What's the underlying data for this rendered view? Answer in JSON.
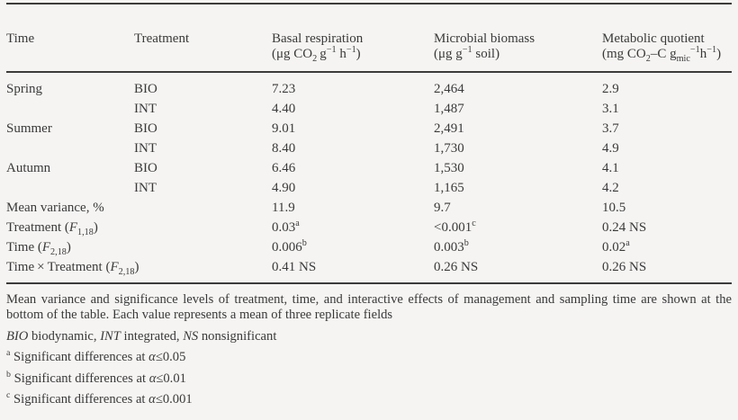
{
  "table": {
    "columns": [
      {
        "label": "Time"
      },
      {
        "label": "Treatment"
      },
      {
        "label": "Basal respiration",
        "unit": [
          {
            "t": "(μg CO"
          },
          {
            "t": "2",
            "s": "sub"
          },
          {
            "t": " g"
          },
          {
            "t": "−1",
            "s": "sup"
          },
          {
            "t": " h"
          },
          {
            "t": "−1",
            "s": "sup"
          },
          {
            "t": ")"
          }
        ]
      },
      {
        "label": "Microbial biomass",
        "unit": [
          {
            "t": "(μg g"
          },
          {
            "t": "−1",
            "s": "sup"
          },
          {
            "t": " soil)"
          }
        ]
      },
      {
        "label": "Metabolic quotient",
        "unit": [
          {
            "t": "(mg CO"
          },
          {
            "t": "2",
            "s": "sub"
          },
          {
            "t": "–C g"
          },
          {
            "t": "mic",
            "s": "sub"
          },
          {
            "t": "−1",
            "s": "sup"
          },
          {
            "t": "h"
          },
          {
            "t": "−1",
            "s": "sup"
          },
          {
            "t": ")"
          }
        ]
      }
    ],
    "rows": [
      {
        "label": [
          {
            "t": "Spring"
          }
        ],
        "treatment": "BIO",
        "basal": [
          {
            "t": "7.23"
          }
        ],
        "biomass": [
          {
            "t": "2,464"
          }
        ],
        "quotient": [
          {
            "t": "2.9"
          }
        ]
      },
      {
        "label": [
          {
            "t": ""
          }
        ],
        "treatment": "INT",
        "basal": [
          {
            "t": "4.40"
          }
        ],
        "biomass": [
          {
            "t": "1,487"
          }
        ],
        "quotient": [
          {
            "t": "3.1"
          }
        ]
      },
      {
        "label": [
          {
            "t": "Summer"
          }
        ],
        "treatment": "BIO",
        "basal": [
          {
            "t": "9.01"
          }
        ],
        "biomass": [
          {
            "t": "2,491"
          }
        ],
        "quotient": [
          {
            "t": "3.7"
          }
        ]
      },
      {
        "label": [
          {
            "t": ""
          }
        ],
        "treatment": "INT",
        "basal": [
          {
            "t": "8.40"
          }
        ],
        "biomass": [
          {
            "t": "1,730"
          }
        ],
        "quotient": [
          {
            "t": "4.9"
          }
        ]
      },
      {
        "label": [
          {
            "t": "Autumn"
          }
        ],
        "treatment": "BIO",
        "basal": [
          {
            "t": "6.46"
          }
        ],
        "biomass": [
          {
            "t": "1,530"
          }
        ],
        "quotient": [
          {
            "t": "4.1"
          }
        ]
      },
      {
        "label": [
          {
            "t": ""
          }
        ],
        "treatment": "INT",
        "basal": [
          {
            "t": "4.90"
          }
        ],
        "biomass": [
          {
            "t": "1,165"
          }
        ],
        "quotient": [
          {
            "t": "4.2"
          }
        ]
      },
      {
        "label": [
          {
            "t": "Mean variance, %"
          }
        ],
        "treatment": "",
        "basal": [
          {
            "t": "11.9"
          }
        ],
        "biomass": [
          {
            "t": "9.7"
          }
        ],
        "quotient": [
          {
            "t": "10.5"
          }
        ]
      },
      {
        "label": [
          {
            "t": "Treatment ("
          },
          {
            "t": "F",
            "s": "i"
          },
          {
            "t": "1,18",
            "s": "sub"
          },
          {
            "t": ")"
          }
        ],
        "treatment": "",
        "basal": [
          {
            "t": "0.03"
          },
          {
            "t": "a",
            "s": "sup"
          }
        ],
        "biomass": [
          {
            "t": "<0.001"
          },
          {
            "t": "c",
            "s": "sup"
          }
        ],
        "quotient": [
          {
            "t": "0.24 NS"
          }
        ]
      },
      {
        "label": [
          {
            "t": "Time ("
          },
          {
            "t": "F",
            "s": "i"
          },
          {
            "t": "2,18",
            "s": "sub"
          },
          {
            "t": ")"
          }
        ],
        "treatment": "",
        "basal": [
          {
            "t": "0.006"
          },
          {
            "t": "b",
            "s": "sup"
          }
        ],
        "biomass": [
          {
            "t": "0.003"
          },
          {
            "t": "b",
            "s": "sup"
          }
        ],
        "quotient": [
          {
            "t": "0.02"
          },
          {
            "t": "a",
            "s": "sup"
          }
        ]
      },
      {
        "label": [
          {
            "t": "Time × Treatment ("
          },
          {
            "t": "F",
            "s": "i"
          },
          {
            "t": "2,18",
            "s": "sub"
          },
          {
            "t": ")"
          }
        ],
        "treatment": "",
        "basal": [
          {
            "t": "0.41 NS"
          }
        ],
        "biomass": [
          {
            "t": "0.26 NS"
          }
        ],
        "quotient": [
          {
            "t": "0.26 NS"
          }
        ]
      }
    ]
  },
  "footnotes": {
    "general": "Mean variance and significance levels of treatment, time, and interactive effects of management and sampling time are shown at the bottom of the table. Each value represents a mean of three replicate fields",
    "abbreviations": [
      {
        "t": "BIO",
        "s": "i"
      },
      {
        "t": " biodynamic, "
      },
      {
        "t": "INT",
        "s": "i"
      },
      {
        "t": " integrated, "
      },
      {
        "t": "NS",
        "s": "i"
      },
      {
        "t": " nonsignificant"
      }
    ],
    "sig_a": [
      {
        "t": "a",
        "s": "sup"
      },
      {
        "t": " Significant differences at "
      },
      {
        "t": "α",
        "s": "i"
      },
      {
        "t": "≤0.05"
      }
    ],
    "sig_b": [
      {
        "t": "b",
        "s": "sup"
      },
      {
        "t": " Significant differences at "
      },
      {
        "t": "α",
        "s": "i"
      },
      {
        "t": "≤0.01"
      }
    ],
    "sig_c": [
      {
        "t": "c",
        "s": "sup"
      },
      {
        "t": " Significant differences at "
      },
      {
        "t": "α",
        "s": "i"
      },
      {
        "t": "≤0.001"
      }
    ]
  }
}
